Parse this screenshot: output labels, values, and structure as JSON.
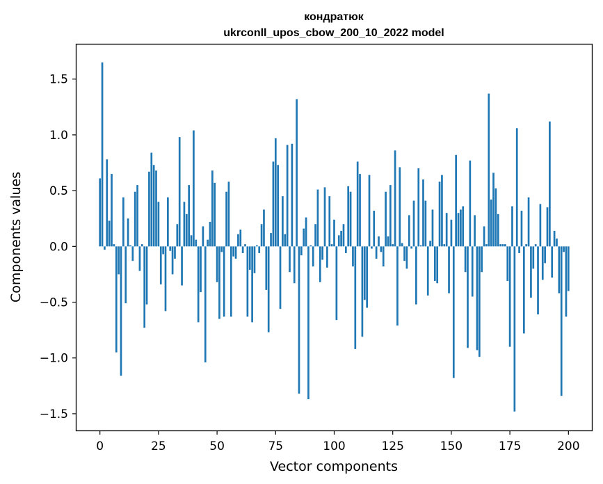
{
  "chart_data": {
    "type": "bar",
    "title_line1": "кондратюк",
    "title_line2": "ukrconll_upos_cbow_200_10_2022 model",
    "xlabel": "Vector components",
    "ylabel": "Components values",
    "xlim": [
      -10,
      210
    ],
    "ylim": [
      -1.65,
      1.81
    ],
    "xticks": [
      0,
      25,
      50,
      75,
      100,
      125,
      150,
      175,
      200
    ],
    "yticks": [
      -1.5,
      -1.0,
      -0.5,
      0.0,
      0.5,
      1.0,
      1.5
    ],
    "ytick_labels": [
      "−1.5",
      "−1.0",
      "−0.5",
      "0.0",
      "0.5",
      "1.0",
      "1.5"
    ],
    "bar_color": "#1f77b4",
    "series": [
      {
        "name": "components",
        "values": [
          0.61,
          1.65,
          -0.03,
          0.78,
          0.23,
          0.65,
          0.02,
          -0.95,
          -0.25,
          -1.16,
          0.44,
          -0.51,
          0.25,
          0.01,
          -0.13,
          0.49,
          0.55,
          -0.22,
          0.02,
          -0.73,
          -0.52,
          0.67,
          0.84,
          0.73,
          0.68,
          0.4,
          -0.34,
          -0.07,
          -0.58,
          0.44,
          -0.04,
          -0.25,
          -0.11,
          0.2,
          0.98,
          -0.35,
          0.4,
          0.29,
          0.55,
          0.1,
          1.04,
          0.06,
          -0.68,
          -0.41,
          0.18,
          -1.04,
          0.06,
          0.22,
          0.68,
          0.57,
          -0.32,
          -0.65,
          -0.05,
          -0.63,
          0.49,
          0.58,
          -0.63,
          -0.09,
          -0.11,
          0.11,
          0.15,
          -0.06,
          0.02,
          -0.63,
          -0.21,
          -0.68,
          -0.24,
          0.01,
          -0.06,
          0.2,
          0.33,
          -0.39,
          -0.77,
          0.12,
          0.76,
          0.97,
          0.73,
          -0.56,
          0.45,
          0.11,
          0.91,
          -0.23,
          0.92,
          -0.33,
          1.32,
          -1.32,
          -0.08,
          0.16,
          0.26,
          -1.37,
          0.01,
          -0.18,
          0.2,
          0.51,
          -0.32,
          -0.12,
          0.53,
          -0.19,
          0.45,
          0.02,
          0.24,
          -0.66,
          0.1,
          0.14,
          0.2,
          -0.06,
          0.54,
          0.49,
          -0.18,
          -0.92,
          0.76,
          0.65,
          -0.81,
          -0.48,
          -0.55,
          0.64,
          -0.02,
          0.32,
          -0.11,
          0.09,
          -0.05,
          -0.18,
          0.49,
          0.09,
          0.55,
          0.02,
          0.86,
          -0.71,
          0.71,
          0.03,
          -0.13,
          -0.2,
          0.28,
          -0.02,
          0.41,
          -0.52,
          0.7,
          0.01,
          0.6,
          0.41,
          -0.44,
          0.05,
          0.33,
          -0.31,
          -0.33,
          0.58,
          0.64,
          0.02,
          0.3,
          -0.42,
          0.24,
          -1.18,
          0.82,
          0.3,
          0.33,
          0.36,
          -0.23,
          -0.91,
          0.77,
          -0.45,
          0.28,
          -0.93,
          -0.99,
          -0.23,
          0.18,
          0.02,
          1.37,
          0.42,
          0.66,
          0.52,
          0.29,
          0.02,
          0.02,
          0.02,
          -0.31,
          -0.9,
          0.36,
          -1.48,
          1.06,
          -0.06,
          0.32,
          -0.78,
          0.02,
          0.44,
          -0.46,
          -0.2,
          0.02,
          -0.61,
          0.38,
          -0.3,
          -0.15,
          0.35,
          1.12,
          -0.28,
          0.14,
          0.07,
          -0.42,
          -1.34,
          -0.05,
          -0.63,
          -0.4
        ]
      }
    ]
  }
}
